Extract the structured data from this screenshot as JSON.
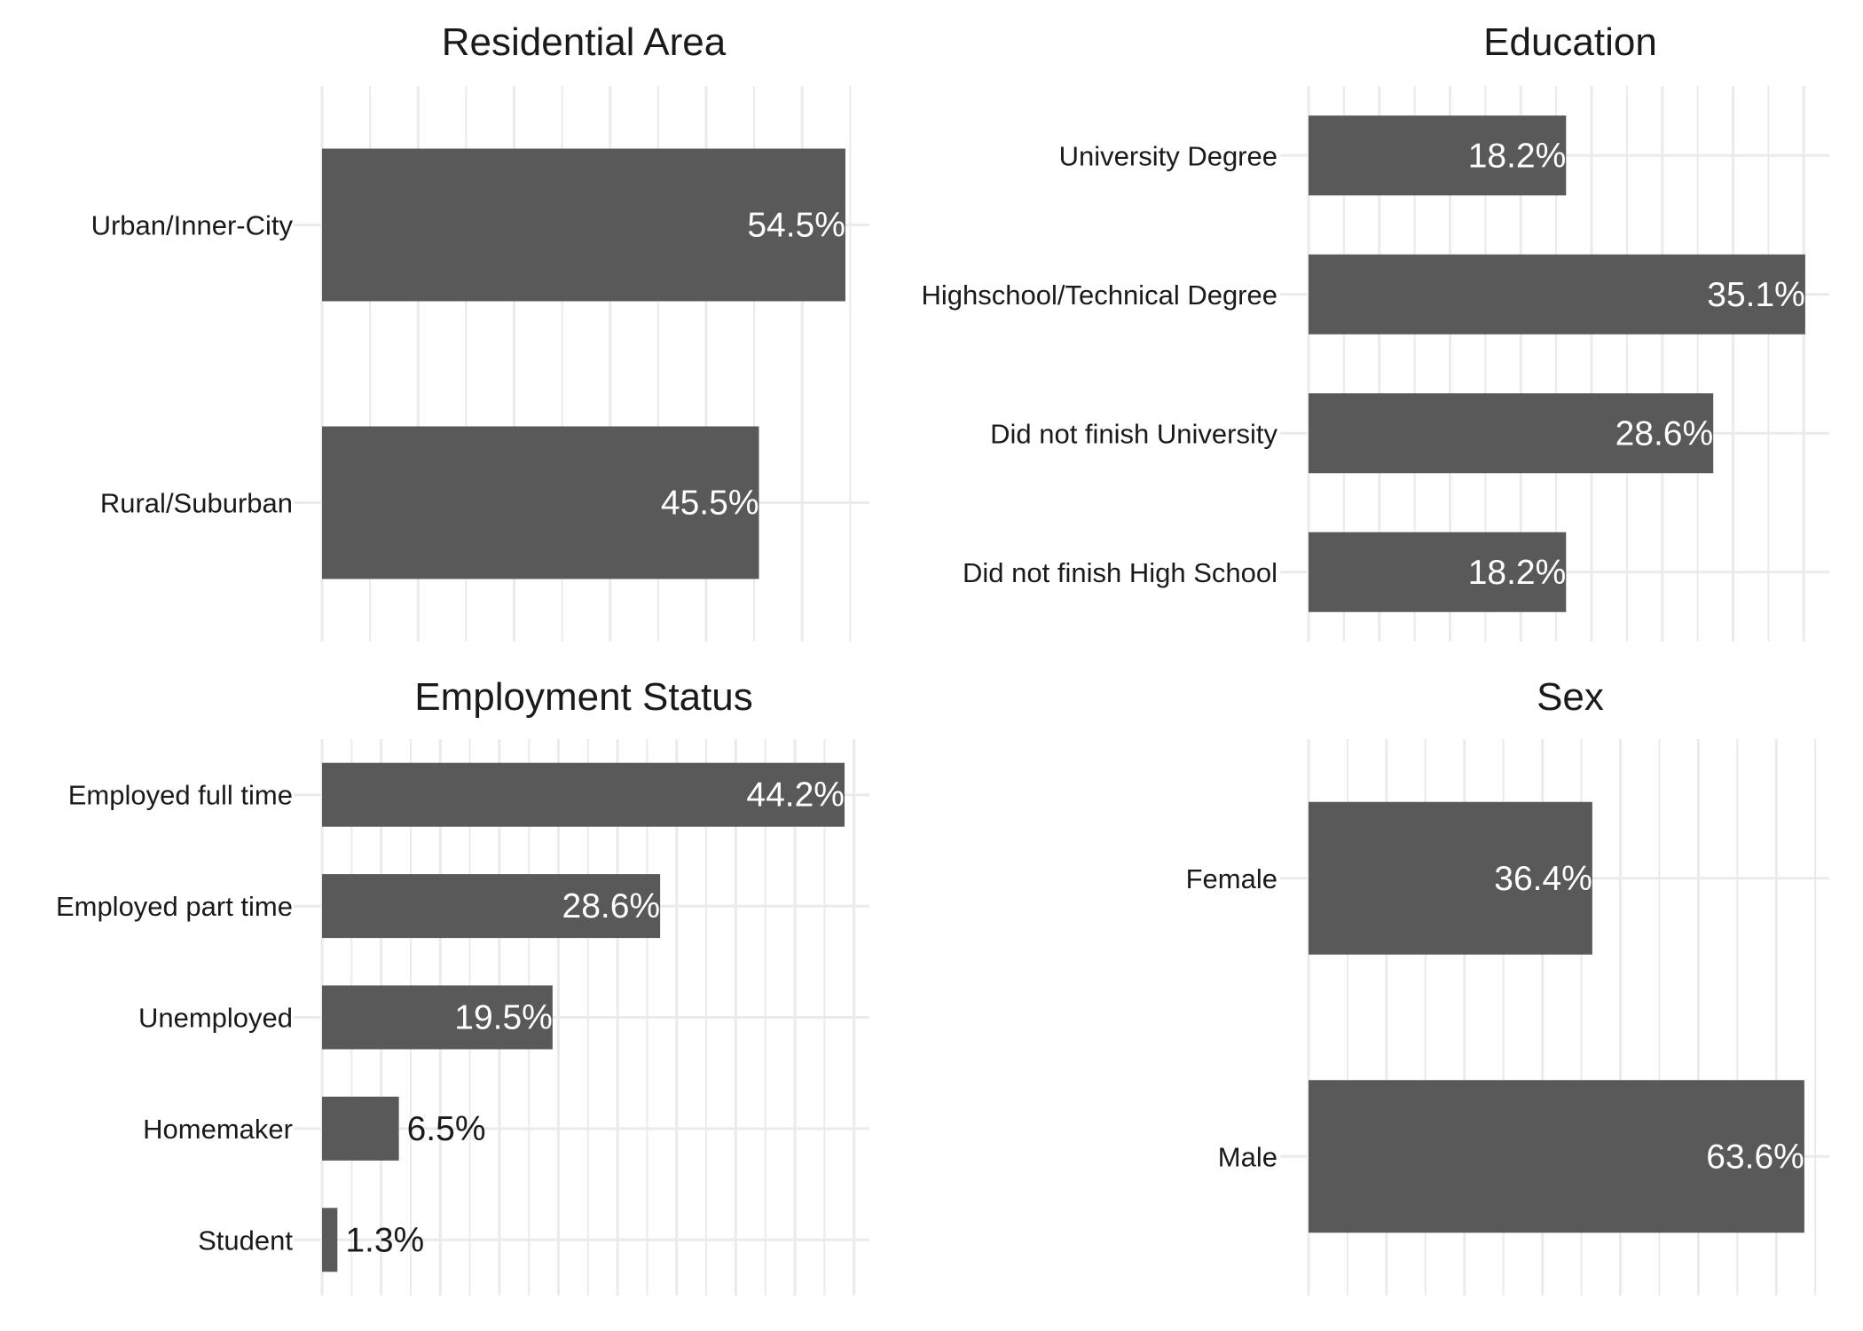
{
  "colors": {
    "bar": "#595959",
    "grid": "#ebebeb",
    "label_inside": "#ffffff",
    "label_outside": "#1a1a1a",
    "axis_text": "#1a1a1a",
    "title": "#1a1a1a"
  },
  "chart_data": [
    {
      "type": "bar",
      "orientation": "horizontal",
      "title": "Residential Area",
      "categories": [
        "Urban/Inner-City",
        "Rural/Suburban"
      ],
      "values": [
        54.5,
        45.5
      ],
      "labels": [
        "54.5%",
        "45.5%"
      ],
      "xlim": [
        0,
        57
      ],
      "grid_step": 10,
      "grid": true
    },
    {
      "type": "bar",
      "orientation": "horizontal",
      "title": "Education",
      "categories": [
        "University Degree",
        "Highschool/Technical Degree",
        "Did not finish University",
        "Did not finish High School"
      ],
      "values": [
        18.2,
        35.1,
        28.6,
        18.2
      ],
      "labels": [
        "18.2%",
        "35.1%",
        "28.6%",
        "18.2%"
      ],
      "xlim": [
        0,
        36.8
      ],
      "grid_step": 5,
      "grid": true
    },
    {
      "type": "bar",
      "orientation": "horizontal",
      "title": "Employment Status",
      "categories": [
        "Employed full time",
        "Employed part time",
        "Unemployed",
        "Homemaker",
        "Student"
      ],
      "values": [
        44.2,
        28.6,
        19.5,
        6.5,
        1.3
      ],
      "labels": [
        "44.2%",
        "28.6%",
        "19.5%",
        "6.5%",
        "1.3%"
      ],
      "xlim": [
        0,
        46.3
      ],
      "grid_step": 5,
      "grid": true
    },
    {
      "type": "bar",
      "orientation": "horizontal",
      "title": "Sex",
      "categories": [
        "Female",
        "Male"
      ],
      "values": [
        36.4,
        63.6
      ],
      "labels": [
        "36.4%",
        "63.6%"
      ],
      "xlim": [
        0,
        66.8
      ],
      "grid_step": 10,
      "grid": true
    }
  ]
}
